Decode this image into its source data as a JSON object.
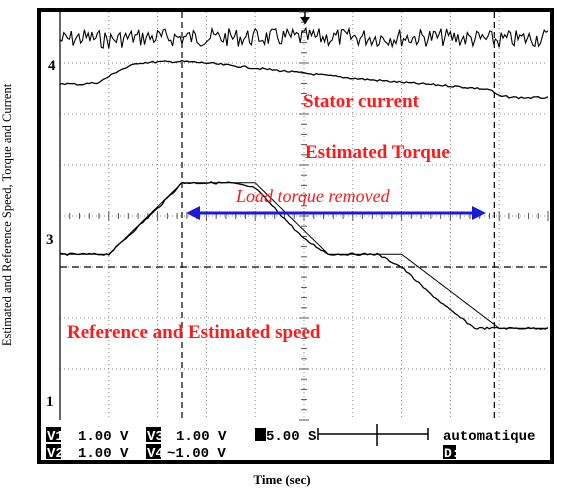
{
  "chart_data": {
    "type": "line",
    "ylabel": "Estimated and Reference Speed, Torque and Current",
    "xlabel": "Time (sec)",
    "channel_markers": {
      "ch4": "4",
      "ch3": "3",
      "ch1": "1"
    },
    "annotations": {
      "stator_current": "Stator current",
      "estimated_torque": "Estimated Torque",
      "load_removed": "Load torque removed",
      "speed": "Reference and Estimated speed"
    },
    "x_divisions": 10,
    "y_divisions": 8,
    "timebase": "5.00 S",
    "mode": "automatique",
    "trigger_readout": "D:…1",
    "channels": [
      {
        "label": "V1",
        "scale": "1.00 V"
      },
      {
        "label": "V2",
        "scale": "1.00 V"
      },
      {
        "label": "V3",
        "scale": "1.00 V"
      },
      {
        "label": "V4",
        "scale": "~1.00 V"
      }
    ],
    "cursor_divs": [
      2.5,
      8.9
    ],
    "reference_level_div": 5.0,
    "series": [
      {
        "name": "Stator current",
        "x": [
          0,
          0.5,
          1,
          1.5,
          2,
          2.5,
          3,
          4,
          5,
          6,
          7,
          8,
          9,
          10
        ],
        "y": [
          0.55,
          0.5,
          0.55,
          0.5,
          0.5,
          0.5,
          0.5,
          0.5,
          0.5,
          0.5,
          0.5,
          0.5,
          0.55,
          0.5
        ],
        "noise": 0.18
      },
      {
        "name": "Estimated Torque",
        "x": [
          0,
          0.4,
          0.8,
          1.2,
          1.6,
          2.0,
          2.5,
          3.0,
          3.5,
          4.0,
          5.0,
          6.0,
          7.0,
          8.0,
          8.8,
          9.0,
          9.4,
          10.0
        ],
        "y": [
          1.4,
          1.42,
          1.38,
          1.15,
          1.0,
          0.98,
          0.97,
          1.0,
          1.05,
          1.1,
          1.2,
          1.3,
          1.38,
          1.45,
          1.52,
          1.65,
          1.68,
          1.68
        ]
      },
      {
        "name": "Estimated speed",
        "x": [
          0,
          0.5,
          1.0,
          1.5,
          2.0,
          2.5,
          3.0,
          3.5,
          4.0,
          4.5,
          5.0,
          5.5,
          6.0,
          6.5,
          7.0,
          7.5,
          8.0,
          8.5,
          9.0,
          9.5,
          10.0
        ],
        "y": [
          4.75,
          4.75,
          4.75,
          4.3,
          3.85,
          3.35,
          3.35,
          3.35,
          3.45,
          3.95,
          4.45,
          4.75,
          4.75,
          4.75,
          5.0,
          5.45,
          5.85,
          6.2,
          6.2,
          6.2,
          6.2
        ]
      },
      {
        "name": "Reference speed",
        "x": [
          0,
          1.0,
          2.5,
          4.0,
          5.5,
          7.0,
          9.0,
          10.0
        ],
        "y": [
          4.75,
          4.75,
          3.35,
          3.35,
          4.75,
          4.75,
          6.2,
          6.2
        ]
      }
    ]
  }
}
